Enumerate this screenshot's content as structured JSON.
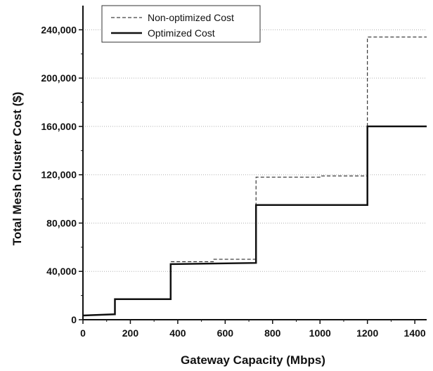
{
  "chart_data": {
    "type": "line",
    "title": "",
    "xlabel": "Gateway Capacity (Mbps)",
    "ylabel": "Total Mesh Cluster Cost ($)",
    "xlim": [
      0,
      1450
    ],
    "ylim": [
      0,
      260000
    ],
    "x_ticks": [
      0,
      200,
      400,
      600,
      800,
      1000,
      1200,
      1400
    ],
    "y_ticks": [
      0,
      40000,
      80000,
      120000,
      160000,
      200000,
      240000
    ],
    "x_tick_labels": [
      "0",
      "200",
      "400",
      "600",
      "800",
      "1000",
      "1200",
      "1400"
    ],
    "y_tick_labels": [
      "0",
      "40,000",
      "80,000",
      "120,000",
      "160,000",
      "200,000",
      "240,000"
    ],
    "grid": "horizontal-dotted",
    "legend_position": "top-left",
    "series": [
      {
        "name": "Non-optimized Cost",
        "style": "dashed",
        "color": "#111111",
        "points": [
          [
            0,
            3500
          ],
          [
            135,
            4500
          ],
          [
            135,
            17000
          ],
          [
            370,
            17000
          ],
          [
            370,
            48000
          ],
          [
            550,
            48000
          ],
          [
            550,
            50000
          ],
          [
            730,
            50000
          ],
          [
            730,
            118000
          ],
          [
            1000,
            118000
          ],
          [
            1000,
            119000
          ],
          [
            1200,
            119000
          ],
          [
            1200,
            234000
          ],
          [
            1450,
            234000
          ]
        ]
      },
      {
        "name": "Optimized Cost",
        "style": "solid",
        "color": "#111111",
        "points": [
          [
            0,
            3500
          ],
          [
            135,
            4500
          ],
          [
            135,
            17000
          ],
          [
            370,
            17000
          ],
          [
            370,
            46000
          ],
          [
            730,
            47000
          ],
          [
            730,
            95000
          ],
          [
            1200,
            95000
          ],
          [
            1200,
            160000
          ],
          [
            1450,
            160000
          ]
        ]
      }
    ]
  }
}
